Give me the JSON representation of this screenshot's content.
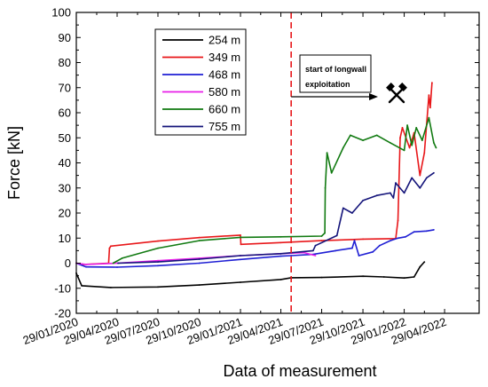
{
  "chart_data": {
    "type": "line",
    "xlabel": "Data of measurement",
    "ylabel": "Force [kN]",
    "ylim": [
      -20,
      100
    ],
    "yticks": [
      -20,
      -10,
      0,
      10,
      20,
      30,
      40,
      50,
      60,
      70,
      80,
      90,
      100
    ],
    "xlim": [
      "2020-01-29",
      "2022-07-15"
    ],
    "xticks": [
      "2020-01-29",
      "2020-04-29",
      "2020-07-29",
      "2020-10-29",
      "2021-01-29",
      "2021-04-29",
      "2021-07-29",
      "2021-10-29",
      "2022-01-29",
      "2022-04-29"
    ],
    "xtick_labels": [
      "29/01/2020",
      "29/04/2020",
      "29/07/2020",
      "29/10/2020",
      "29/01/2021",
      "29/04/2021",
      "29/07/2021",
      "29/10/2021",
      "29/01/2022",
      "29/04/2022"
    ],
    "grid": false,
    "legend": "top-left",
    "annotation": {
      "date": "2021-05-22",
      "line_1": "start of longwall",
      "line_2": "exploitation",
      "color": "#e8171a",
      "icon": "hammer-pick-icon"
    },
    "series": [
      {
        "name": "254 m",
        "color": "#000000",
        "points": [
          [
            "2020-01-29",
            -4
          ],
          [
            "2020-02-10",
            -9
          ],
          [
            "2020-04-15",
            -9.7
          ],
          [
            "2020-07-29",
            -9.5
          ],
          [
            "2020-10-29",
            -8.7
          ],
          [
            "2021-01-29",
            -7.6
          ],
          [
            "2021-04-29",
            -6.5
          ],
          [
            "2021-05-22",
            -5.8
          ],
          [
            "2021-07-29",
            -5.7
          ],
          [
            "2021-10-29",
            -5.2
          ],
          [
            "2021-12-15",
            -5.5
          ],
          [
            "2022-01-29",
            -5.9
          ],
          [
            "2022-02-20",
            -5.5
          ],
          [
            "2022-03-05",
            -1.5
          ],
          [
            "2022-03-15",
            0.5
          ]
        ]
      },
      {
        "name": "349 m",
        "color": "#e8171a",
        "points": [
          [
            "2020-01-29",
            0
          ],
          [
            "2020-02-15",
            -0.5
          ],
          [
            "2020-04-10",
            0
          ],
          [
            "2020-04-12",
            6
          ],
          [
            "2020-04-15",
            6.8
          ],
          [
            "2020-07-29",
            8.8
          ],
          [
            "2020-10-29",
            10.2
          ],
          [
            "2021-01-29",
            11.2
          ],
          [
            "2021-01-30",
            7.5
          ],
          [
            "2021-04-29",
            8.2
          ],
          [
            "2021-07-29",
            9
          ],
          [
            "2021-10-29",
            9.6
          ],
          [
            "2022-01-10",
            9.8
          ],
          [
            "2022-01-15",
            17
          ],
          [
            "2022-01-20",
            50
          ],
          [
            "2022-01-25",
            54
          ],
          [
            "2022-02-10",
            46
          ],
          [
            "2022-02-20",
            52
          ],
          [
            "2022-03-05",
            35
          ],
          [
            "2022-03-15",
            44
          ],
          [
            "2022-03-25",
            67
          ],
          [
            "2022-03-28",
            62
          ],
          [
            "2022-04-01",
            72
          ]
        ]
      },
      {
        "name": "468 m",
        "color": "#1f1fd4",
        "points": [
          [
            "2020-01-29",
            0
          ],
          [
            "2020-02-20",
            -1.5
          ],
          [
            "2020-04-29",
            -1.6
          ],
          [
            "2020-07-29",
            -1
          ],
          [
            "2020-10-29",
            0
          ],
          [
            "2021-01-29",
            1.5
          ],
          [
            "2021-04-29",
            2.8
          ],
          [
            "2021-05-22",
            3
          ],
          [
            "2021-07-10",
            3.5
          ],
          [
            "2021-08-29",
            5
          ],
          [
            "2021-10-05",
            6
          ],
          [
            "2021-10-10",
            9
          ],
          [
            "2021-10-20",
            3
          ],
          [
            "2021-11-20",
            4.5
          ],
          [
            "2021-12-05",
            7
          ],
          [
            "2021-12-29",
            9
          ],
          [
            "2022-01-15",
            10
          ],
          [
            "2022-02-01",
            10.5
          ],
          [
            "2022-02-20",
            12.5
          ],
          [
            "2022-03-20",
            12.8
          ],
          [
            "2022-04-05",
            13.3
          ]
        ]
      },
      {
        "name": "580 m",
        "color": "#e81fe8",
        "points": [
          [
            "2020-01-29",
            0
          ],
          [
            "2020-02-20",
            -0.5
          ],
          [
            "2020-04-29",
            0
          ],
          [
            "2020-07-29",
            1
          ],
          [
            "2020-10-29",
            2
          ],
          [
            "2021-01-29",
            3
          ],
          [
            "2021-04-29",
            3.8
          ],
          [
            "2021-06-20",
            4.2
          ],
          [
            "2021-07-15",
            3
          ]
        ]
      },
      {
        "name": "660 m",
        "color": "#117a11",
        "points": [
          [
            "2020-04-20",
            0
          ],
          [
            "2020-05-10",
            2
          ],
          [
            "2020-07-29",
            6
          ],
          [
            "2020-10-29",
            9
          ],
          [
            "2021-01-29",
            10.3
          ],
          [
            "2021-04-29",
            10.5
          ],
          [
            "2021-07-29",
            10.8
          ],
          [
            "2021-08-05",
            12
          ],
          [
            "2021-08-06",
            30
          ],
          [
            "2021-08-10",
            44
          ],
          [
            "2021-08-20",
            36
          ],
          [
            "2021-09-15",
            46
          ],
          [
            "2021-10-01",
            51
          ],
          [
            "2021-10-29",
            49
          ],
          [
            "2021-11-29",
            51
          ],
          [
            "2021-12-29",
            48
          ],
          [
            "2022-01-29",
            45
          ],
          [
            "2022-02-05",
            55
          ],
          [
            "2022-02-15",
            47
          ],
          [
            "2022-02-25",
            54
          ],
          [
            "2022-03-10",
            49
          ],
          [
            "2022-03-25",
            58
          ],
          [
            "2022-04-05",
            48
          ],
          [
            "2022-04-10",
            46
          ]
        ]
      },
      {
        "name": "755 m",
        "color": "#14147a",
        "points": [
          [
            "2020-05-01",
            0
          ],
          [
            "2020-07-29",
            0.5
          ],
          [
            "2020-10-29",
            1.6
          ],
          [
            "2021-01-29",
            3
          ],
          [
            "2021-04-29",
            3.8
          ],
          [
            "2021-07-10",
            5
          ],
          [
            "2021-07-15",
            7
          ],
          [
            "2021-09-01",
            11
          ],
          [
            "2021-09-15",
            22
          ],
          [
            "2021-10-05",
            20
          ],
          [
            "2021-10-29",
            25
          ],
          [
            "2021-11-29",
            27
          ],
          [
            "2021-12-29",
            28
          ],
          [
            "2022-01-05",
            26
          ],
          [
            "2022-01-10",
            32
          ],
          [
            "2022-01-29",
            28
          ],
          [
            "2022-02-15",
            34
          ],
          [
            "2022-03-05",
            30
          ],
          [
            "2022-03-20",
            34
          ],
          [
            "2022-04-05",
            36
          ]
        ]
      }
    ]
  }
}
